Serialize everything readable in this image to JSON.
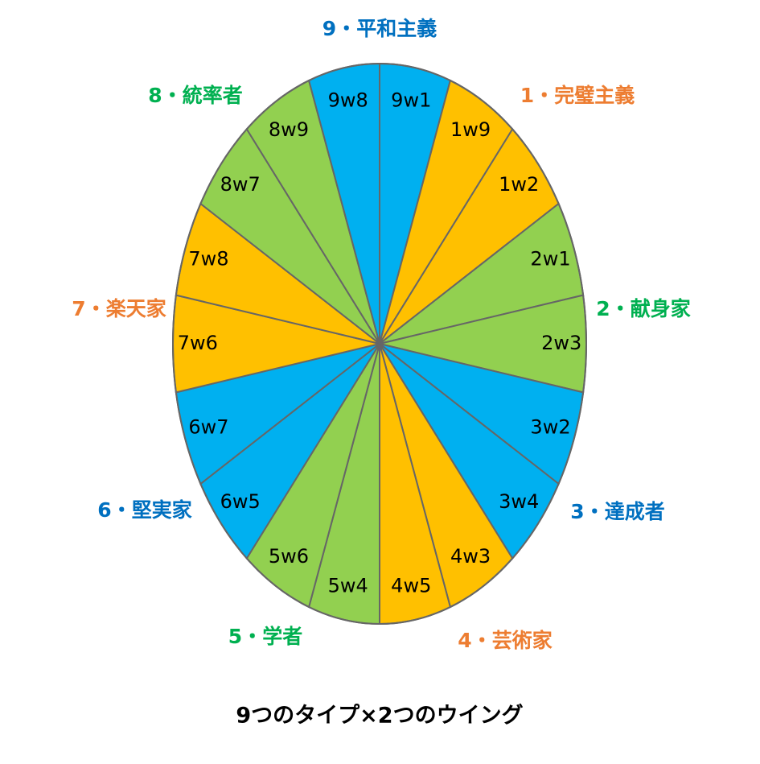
{
  "sectors": [
    {
      "label": "9w1",
      "color": "#00b0f0"
    },
    {
      "label": "1w9",
      "color": "#ffc000"
    },
    {
      "label": "1w2",
      "color": "#ffc000"
    },
    {
      "label": "2w1",
      "color": "#92d050"
    },
    {
      "label": "2w3",
      "color": "#92d050"
    },
    {
      "label": "3w2",
      "color": "#00b0f0"
    },
    {
      "label": "3w4",
      "color": "#00b0f0"
    },
    {
      "label": "4w3",
      "color": "#ffc000"
    },
    {
      "label": "4w5",
      "color": "#ffc000"
    },
    {
      "label": "5w4",
      "color": "#92d050"
    },
    {
      "label": "5w6",
      "color": "#92d050"
    },
    {
      "label": "6w5",
      "color": "#00b0f0"
    },
    {
      "label": "6w7",
      "color": "#00b0f0"
    },
    {
      "label": "7w6",
      "color": "#ffc000"
    },
    {
      "label": "7w8",
      "color": "#ffc000"
    },
    {
      "label": "8w7",
      "color": "#92d050"
    },
    {
      "label": "8w9",
      "color": "#92d050"
    },
    {
      "label": "9w8",
      "color": "#00b0f0"
    }
  ],
  "types": [
    {
      "label": "9・平和主義",
      "color": "#0070c0"
    },
    {
      "label": "1・完璧主義",
      "color": "#ed7d31"
    },
    {
      "label": "2・献身家",
      "color": "#00b050"
    },
    {
      "label": "3・達成者",
      "color": "#0070c0"
    },
    {
      "label": "4・芸術家",
      "color": "#ed7d31"
    },
    {
      "label": "5・学者",
      "color": "#00b050"
    },
    {
      "label": "6・堅実家",
      "color": "#0070c0"
    },
    {
      "label": "7・楽天家",
      "color": "#ed7d31"
    },
    {
      "label": "8・統率者",
      "color": "#00b050"
    }
  ],
  "caption": "9つのタイプ×2つのウイング"
}
